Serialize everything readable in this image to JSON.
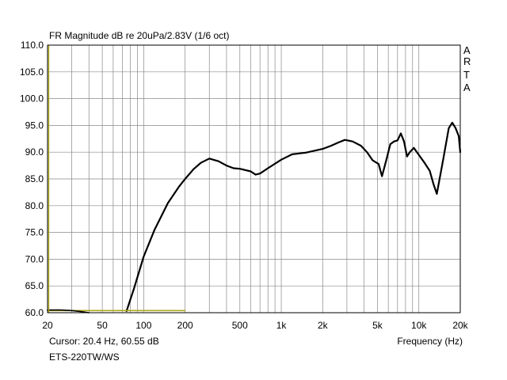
{
  "chart_data": {
    "type": "line",
    "title": "FR Magnitude dB re 20uPa/2.83V (1/6 oct)",
    "xlabel": "Frequency (Hz)",
    "ylabel": "",
    "xscale": "log",
    "xlim": [
      20,
      20000
    ],
    "ylim": [
      60,
      110
    ],
    "grid": true,
    "x_tick_labels": [
      "20",
      "50",
      "100",
      "200",
      "500",
      "1k",
      "2k",
      "5k",
      "10k",
      "20k"
    ],
    "x_tick_values": [
      20,
      50,
      100,
      200,
      500,
      1000,
      2000,
      5000,
      10000,
      20000
    ],
    "y_tick_labels": [
      "60.0",
      "65.0",
      "70.0",
      "75.0",
      "80.0",
      "85.0",
      "90.0",
      "95.0",
      "100.0",
      "105.0",
      "110.0"
    ],
    "y_tick_values": [
      60,
      65,
      70,
      75,
      80,
      85,
      90,
      95,
      100,
      105,
      110
    ],
    "series": [
      {
        "color": "#000000",
        "x": [
          75,
          85,
          100,
          120,
          150,
          180,
          200,
          230,
          260,
          300,
          350,
          400,
          450,
          500,
          600,
          650,
          700,
          800,
          1000,
          1200,
          1500,
          2000,
          2300,
          2600,
          2900,
          3300,
          3800,
          4200,
          4600,
          4800,
          5100,
          5400,
          5800,
          6200,
          6600,
          7000,
          7400,
          7800,
          8200,
          8600,
          9200,
          10000,
          11000,
          12000,
          12800,
          13500,
          15000,
          16500,
          17500,
          18500,
          19500,
          20000
        ],
        "y": [
          60.3,
          64.5,
          70.5,
          75.5,
          80.5,
          83.5,
          85.0,
          86.8,
          88.0,
          88.8,
          88.3,
          87.5,
          87.0,
          86.9,
          86.4,
          85.8,
          86.0,
          87.0,
          88.6,
          89.6,
          89.9,
          90.6,
          91.2,
          91.8,
          92.3,
          92.0,
          91.2,
          90.0,
          88.5,
          88.2,
          87.8,
          85.5,
          88.5,
          91.5,
          92.0,
          92.2,
          93.5,
          92.0,
          89.2,
          90.0,
          90.8,
          89.5,
          88.0,
          86.5,
          84.0,
          82.2,
          88.5,
          94.5,
          95.5,
          94.5,
          93.0,
          90.0
        ]
      },
      {
        "color": "#b0a81c",
        "x": [
          20,
          200
        ],
        "y": [
          60.4,
          60.4
        ]
      },
      {
        "color": "#000000",
        "x": [
          20,
          25,
          30,
          35,
          40
        ],
        "y": [
          60.5,
          60.5,
          60.4,
          60.2,
          60.0
        ]
      }
    ]
  },
  "labels": {
    "cursor": "Cursor: 20.4 Hz, 60.55 dB",
    "device": "ETS-220TW/WS",
    "arta": [
      "A",
      "R",
      "T",
      "A"
    ]
  },
  "colors": {
    "grid": "#888888",
    "frame": "#000000",
    "trace": "#000000",
    "cursor_line": "#b0a81c"
  }
}
